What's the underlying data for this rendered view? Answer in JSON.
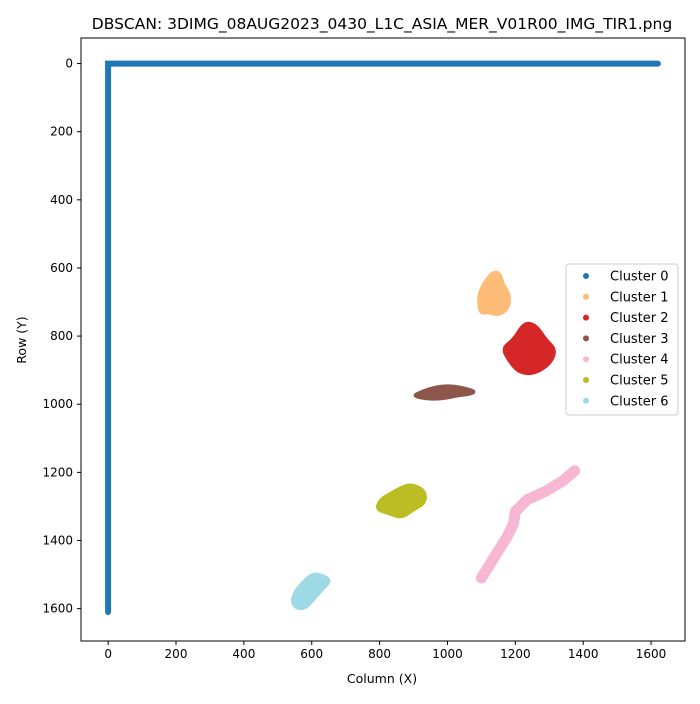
{
  "chart_data": {
    "type": "scatter",
    "title": "DBSCAN: 3DIMG_08AUG2023_0430_L1C_ASIA_MER_V01R00_IMG_TIR1.png",
    "xlabel": "Column (X)",
    "ylabel": "Row (Y)",
    "xlim": [
      -80,
      1700
    ],
    "ylim": [
      1695,
      -75
    ],
    "y_inverted": true,
    "grid": false,
    "legend_position": "center right",
    "xticks": [
      0,
      200,
      400,
      600,
      800,
      1000,
      1200,
      1400,
      1600
    ],
    "yticks": [
      0,
      200,
      400,
      600,
      800,
      1000,
      1200,
      1400,
      1600
    ],
    "series": [
      {
        "name": "Cluster 0",
        "color": "#1f77b4",
        "shape": "l-frame",
        "points": [
          [
            0,
            1610
          ],
          [
            0,
            0
          ],
          [
            1620,
            0
          ]
        ]
      },
      {
        "name": "Cluster 1",
        "color": "#ffbb78",
        "shape": "blob",
        "points": [
          [
            1095,
            735
          ],
          [
            1090,
            680
          ],
          [
            1110,
            640
          ],
          [
            1135,
            610
          ],
          [
            1155,
            615
          ],
          [
            1165,
            650
          ],
          [
            1185,
            680
          ],
          [
            1180,
            720
          ],
          [
            1150,
            740
          ],
          [
            1120,
            730
          ]
        ]
      },
      {
        "name": "Cluster 2",
        "color": "#d62728",
        "shape": "blob",
        "points": [
          [
            1160,
            835
          ],
          [
            1195,
            810
          ],
          [
            1225,
            760
          ],
          [
            1260,
            765
          ],
          [
            1290,
            810
          ],
          [
            1320,
            840
          ],
          [
            1305,
            880
          ],
          [
            1260,
            910
          ],
          [
            1215,
            910
          ],
          [
            1185,
            880
          ]
        ]
      },
      {
        "name": "Cluster 3",
        "color": "#8c564b",
        "shape": "blob",
        "points": [
          [
            895,
            975
          ],
          [
            930,
            960
          ],
          [
            960,
            950
          ],
          [
            1000,
            945
          ],
          [
            1040,
            950
          ],
          [
            1080,
            960
          ],
          [
            1075,
            970
          ],
          [
            1030,
            975
          ],
          [
            985,
            985
          ],
          [
            935,
            985
          ]
        ]
      },
      {
        "name": "Cluster 4",
        "color": "#f7b6d2",
        "shape": "band",
        "points": [
          [
            1100,
            1510
          ],
          [
            1125,
            1470
          ],
          [
            1150,
            1430
          ],
          [
            1175,
            1390
          ],
          [
            1195,
            1350
          ],
          [
            1200,
            1315
          ],
          [
            1235,
            1280
          ],
          [
            1290,
            1255
          ],
          [
            1340,
            1225
          ],
          [
            1375,
            1195
          ]
        ]
      },
      {
        "name": "Cluster 5",
        "color": "#bcbd22",
        "shape": "blob",
        "points": [
          [
            790,
            1310
          ],
          [
            800,
            1280
          ],
          [
            835,
            1260
          ],
          [
            870,
            1240
          ],
          [
            900,
            1235
          ],
          [
            935,
            1255
          ],
          [
            935,
            1290
          ],
          [
            900,
            1310
          ],
          [
            865,
            1335
          ],
          [
            825,
            1320
          ]
        ]
      },
      {
        "name": "Cluster 6",
        "color": "#9edae5",
        "shape": "blob",
        "points": [
          [
            540,
            1580
          ],
          [
            550,
            1550
          ],
          [
            575,
            1520
          ],
          [
            605,
            1495
          ],
          [
            640,
            1505
          ],
          [
            655,
            1520
          ],
          [
            635,
            1540
          ],
          [
            605,
            1575
          ],
          [
            580,
            1600
          ],
          [
            555,
            1600
          ]
        ]
      }
    ]
  }
}
